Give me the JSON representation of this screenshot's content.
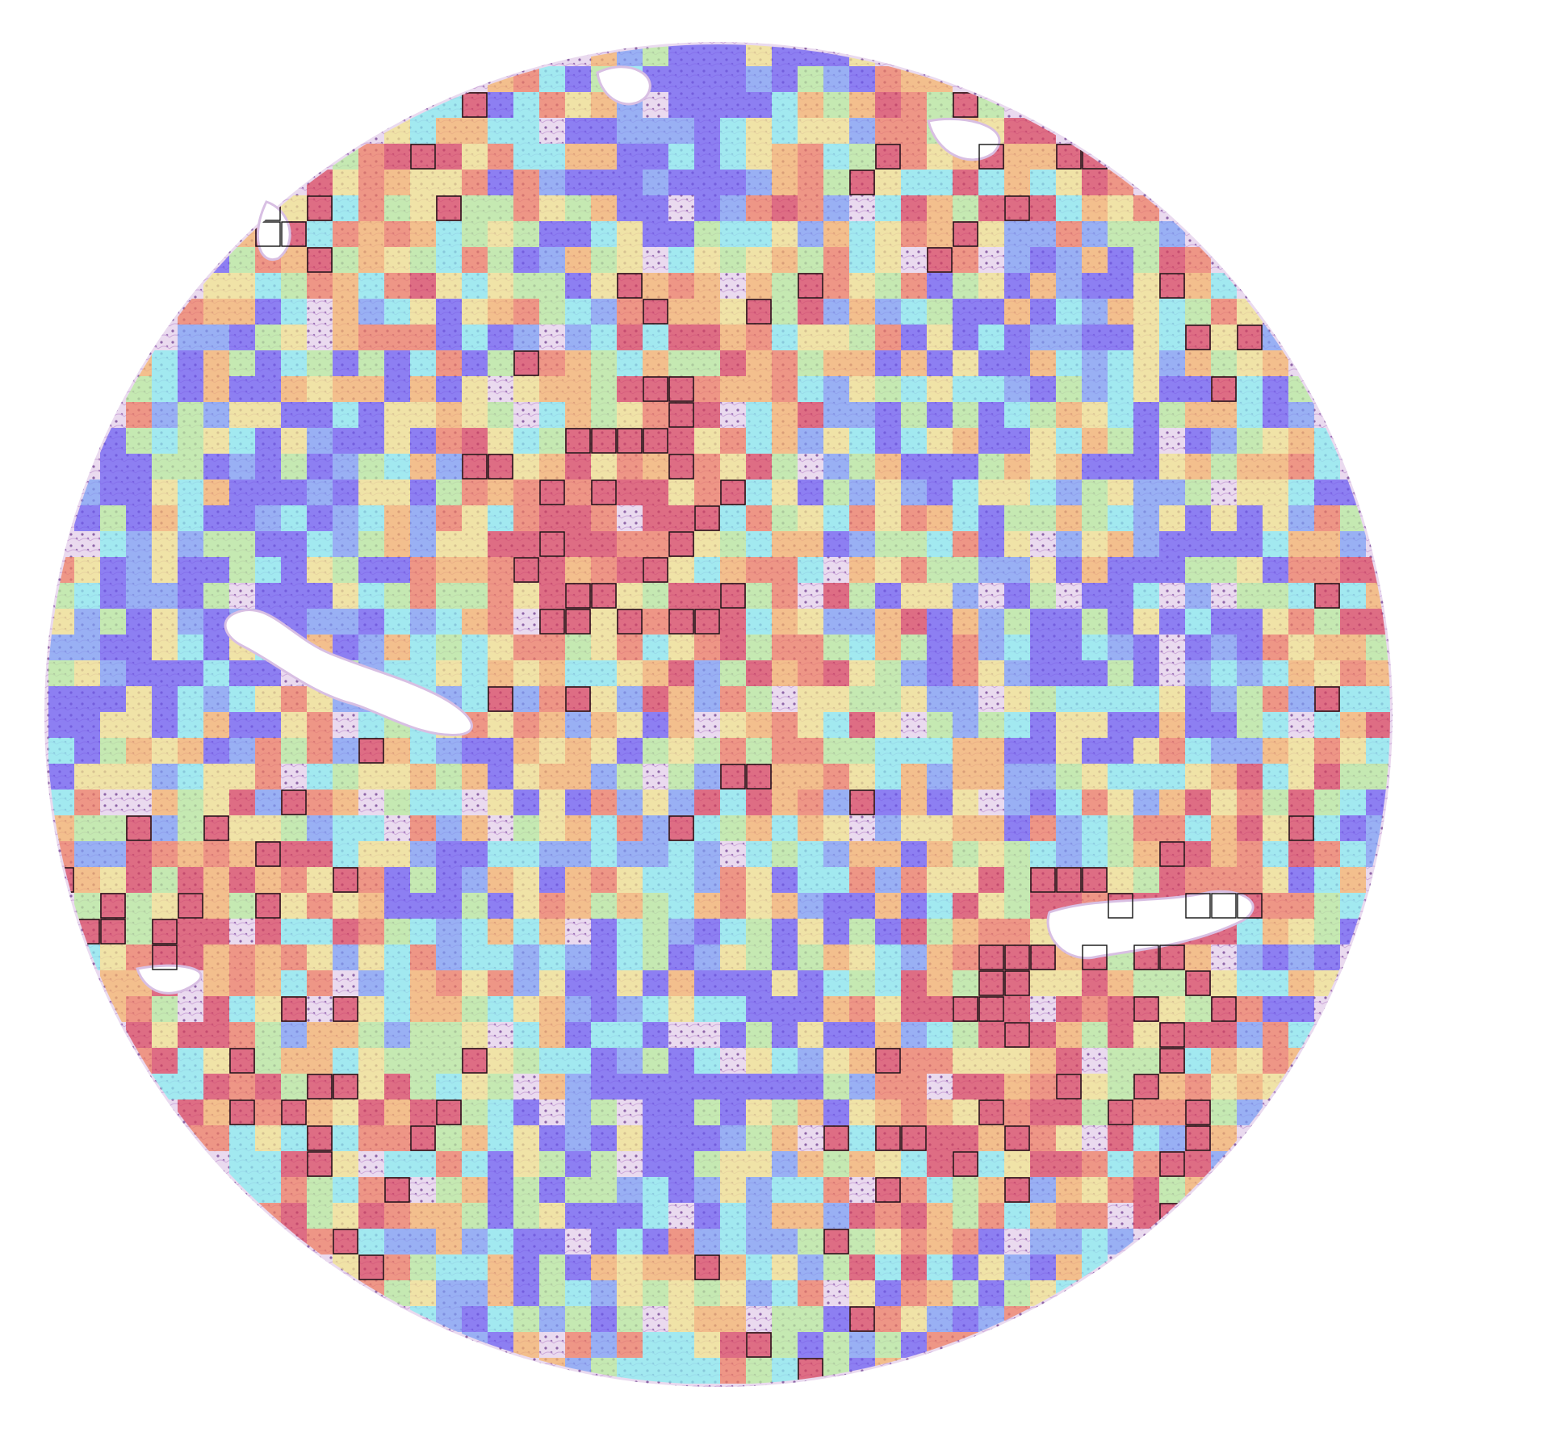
{
  "image": {
    "description_free": true,
    "colors": {
      "background": "#ffffff",
      "tissue_stain": "#c9a3d6",
      "tissue_stain_dark": "#8a5aa8",
      "outline": "#111111"
    },
    "heatmap": {
      "colormap": [
        "#6a5cf2",
        "#7aa0f5",
        "#86eef0",
        "#b7ee9a",
        "#f3e68a",
        "#f6b467",
        "#f07b5d",
        "#d9435a"
      ],
      "opacity": 0.72,
      "outlined_tiles_shown": true
    }
  }
}
